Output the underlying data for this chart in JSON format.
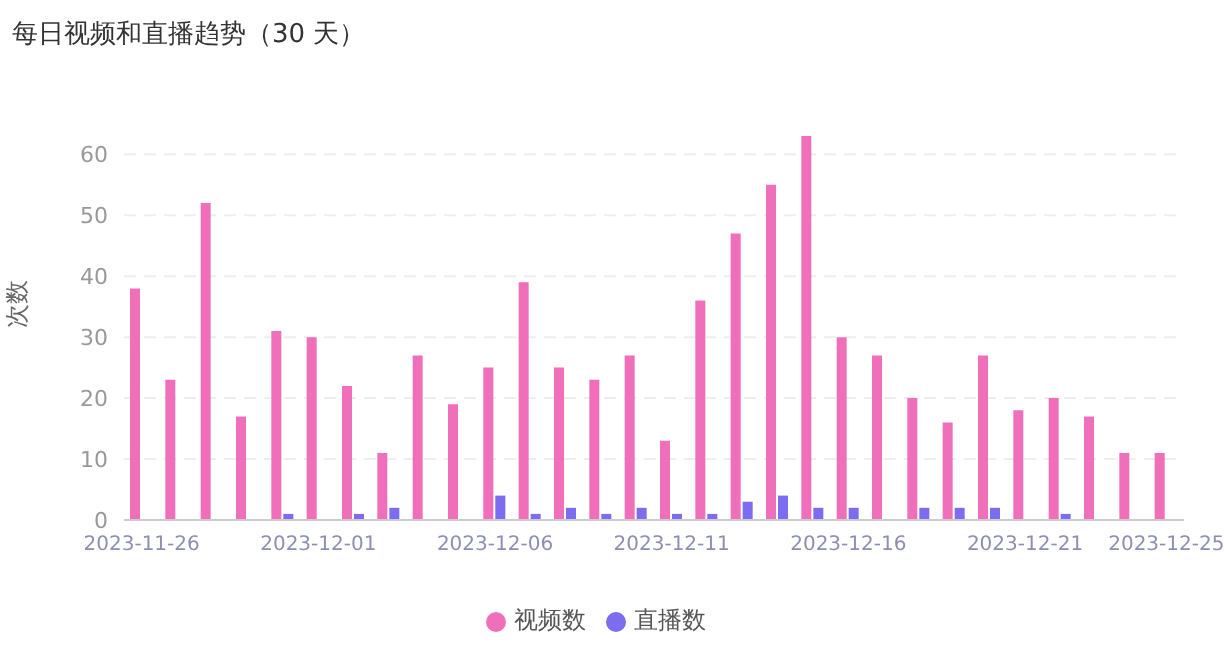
{
  "chart_data": {
    "type": "bar",
    "title": "每日视频和直播趋势（30 天）",
    "ylabel": "次数",
    "ylim": [
      0,
      63
    ],
    "categories": [
      "2023-11-26",
      null,
      null,
      null,
      null,
      "2023-12-01",
      null,
      null,
      null,
      null,
      "2023-12-06",
      null,
      null,
      null,
      null,
      "2023-12-11",
      null,
      null,
      null,
      null,
      "2023-12-16",
      null,
      null,
      null,
      null,
      "2023-12-21",
      null,
      null,
      null,
      "2023-12-25"
    ],
    "series": [
      {
        "name": "视频数",
        "color": "#f06fba",
        "values": [
          38,
          23,
          52,
          17,
          31,
          30,
          22,
          11,
          27,
          19,
          25,
          39,
          25,
          23,
          27,
          13,
          36,
          47,
          55,
          63,
          30,
          27,
          20,
          16,
          27,
          18,
          20,
          17,
          11,
          11
        ]
      },
      {
        "name": "直播数",
        "color": "#7b6cf0",
        "values": [
          0,
          0,
          0,
          0,
          1,
          0,
          1,
          2,
          0,
          0,
          4,
          1,
          2,
          1,
          2,
          1,
          1,
          3,
          4,
          2,
          2,
          0,
          2,
          2,
          2,
          0,
          1,
          0,
          0,
          0
        ]
      }
    ],
    "yticks": [
      0,
      10,
      20,
      30,
      40,
      50,
      60
    ],
    "grid": "y",
    "legend": "bottom"
  }
}
